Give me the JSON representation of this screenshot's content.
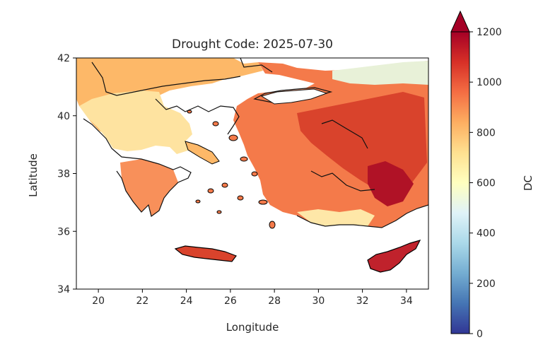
{
  "map": {
    "title": "Drought Code: 2025-07-30",
    "xlabel": "Longitude",
    "ylabel": "Latitude",
    "x_ticks": [
      "20",
      "22",
      "24",
      "26",
      "28",
      "30",
      "32",
      "34"
    ],
    "y_ticks": [
      "34",
      "36",
      "38",
      "40",
      "42"
    ],
    "x_range": [
      19.0,
      35.0
    ],
    "y_range": [
      34.0,
      42.0
    ],
    "sea_color": "#ffffff",
    "land_outline_color": "#000000",
    "border_color": "#333333"
  },
  "colorbar": {
    "label": "DC",
    "ticks": [
      "0",
      "200",
      "400",
      "600",
      "800",
      "1000",
      "1200"
    ],
    "range": [
      0,
      1200
    ],
    "extend": "max",
    "colormap": "RdYlBu_r",
    "stops": [
      "#313695",
      "#4575b4",
      "#74add1",
      "#abd9e9",
      "#e0f3f8",
      "#ffffbf",
      "#fee090",
      "#fdae61",
      "#f46d43",
      "#d73027",
      "#a50026"
    ]
  }
}
